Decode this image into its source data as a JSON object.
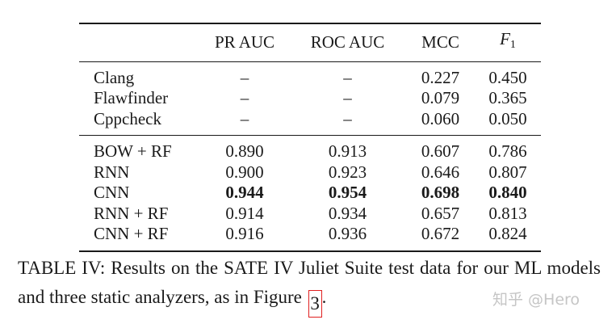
{
  "table": {
    "headers": [
      "",
      "PR AUC",
      "ROC AUC",
      "MCC",
      "F",
      "1"
    ],
    "group1": [
      {
        "name": "Clang",
        "pr_auc": "–",
        "roc_auc": "–",
        "mcc": "0.227",
        "f1": "0.450"
      },
      {
        "name": "Flawfinder",
        "pr_auc": "–",
        "roc_auc": "–",
        "mcc": "0.079",
        "f1": "0.365"
      },
      {
        "name": "Cppcheck",
        "pr_auc": "–",
        "roc_auc": "–",
        "mcc": "0.060",
        "f1": "0.050"
      }
    ],
    "group2": [
      {
        "name": "BOW + RF",
        "pr_auc": "0.890",
        "roc_auc": "0.913",
        "mcc": "0.607",
        "f1": "0.786"
      },
      {
        "name": "RNN",
        "pr_auc": "0.900",
        "roc_auc": "0.923",
        "mcc": "0.646",
        "f1": "0.807"
      },
      {
        "name": "CNN",
        "pr_auc": "0.944",
        "roc_auc": "0.954",
        "mcc": "0.698",
        "f1": "0.840",
        "bold": true
      },
      {
        "name": "RNN + RF",
        "pr_auc": "0.914",
        "roc_auc": "0.934",
        "mcc": "0.657",
        "f1": "0.813"
      },
      {
        "name": "CNN + RF",
        "pr_auc": "0.916",
        "roc_auc": "0.936",
        "mcc": "0.672",
        "f1": "0.824"
      }
    ]
  },
  "caption": {
    "text": "TABLE IV: Results on the SATE IV Juliet Suite test data for our ML models and three static analyzers, as in Figure",
    "ref": "3",
    "end": "."
  },
  "watermark": "知乎 @Hero"
}
